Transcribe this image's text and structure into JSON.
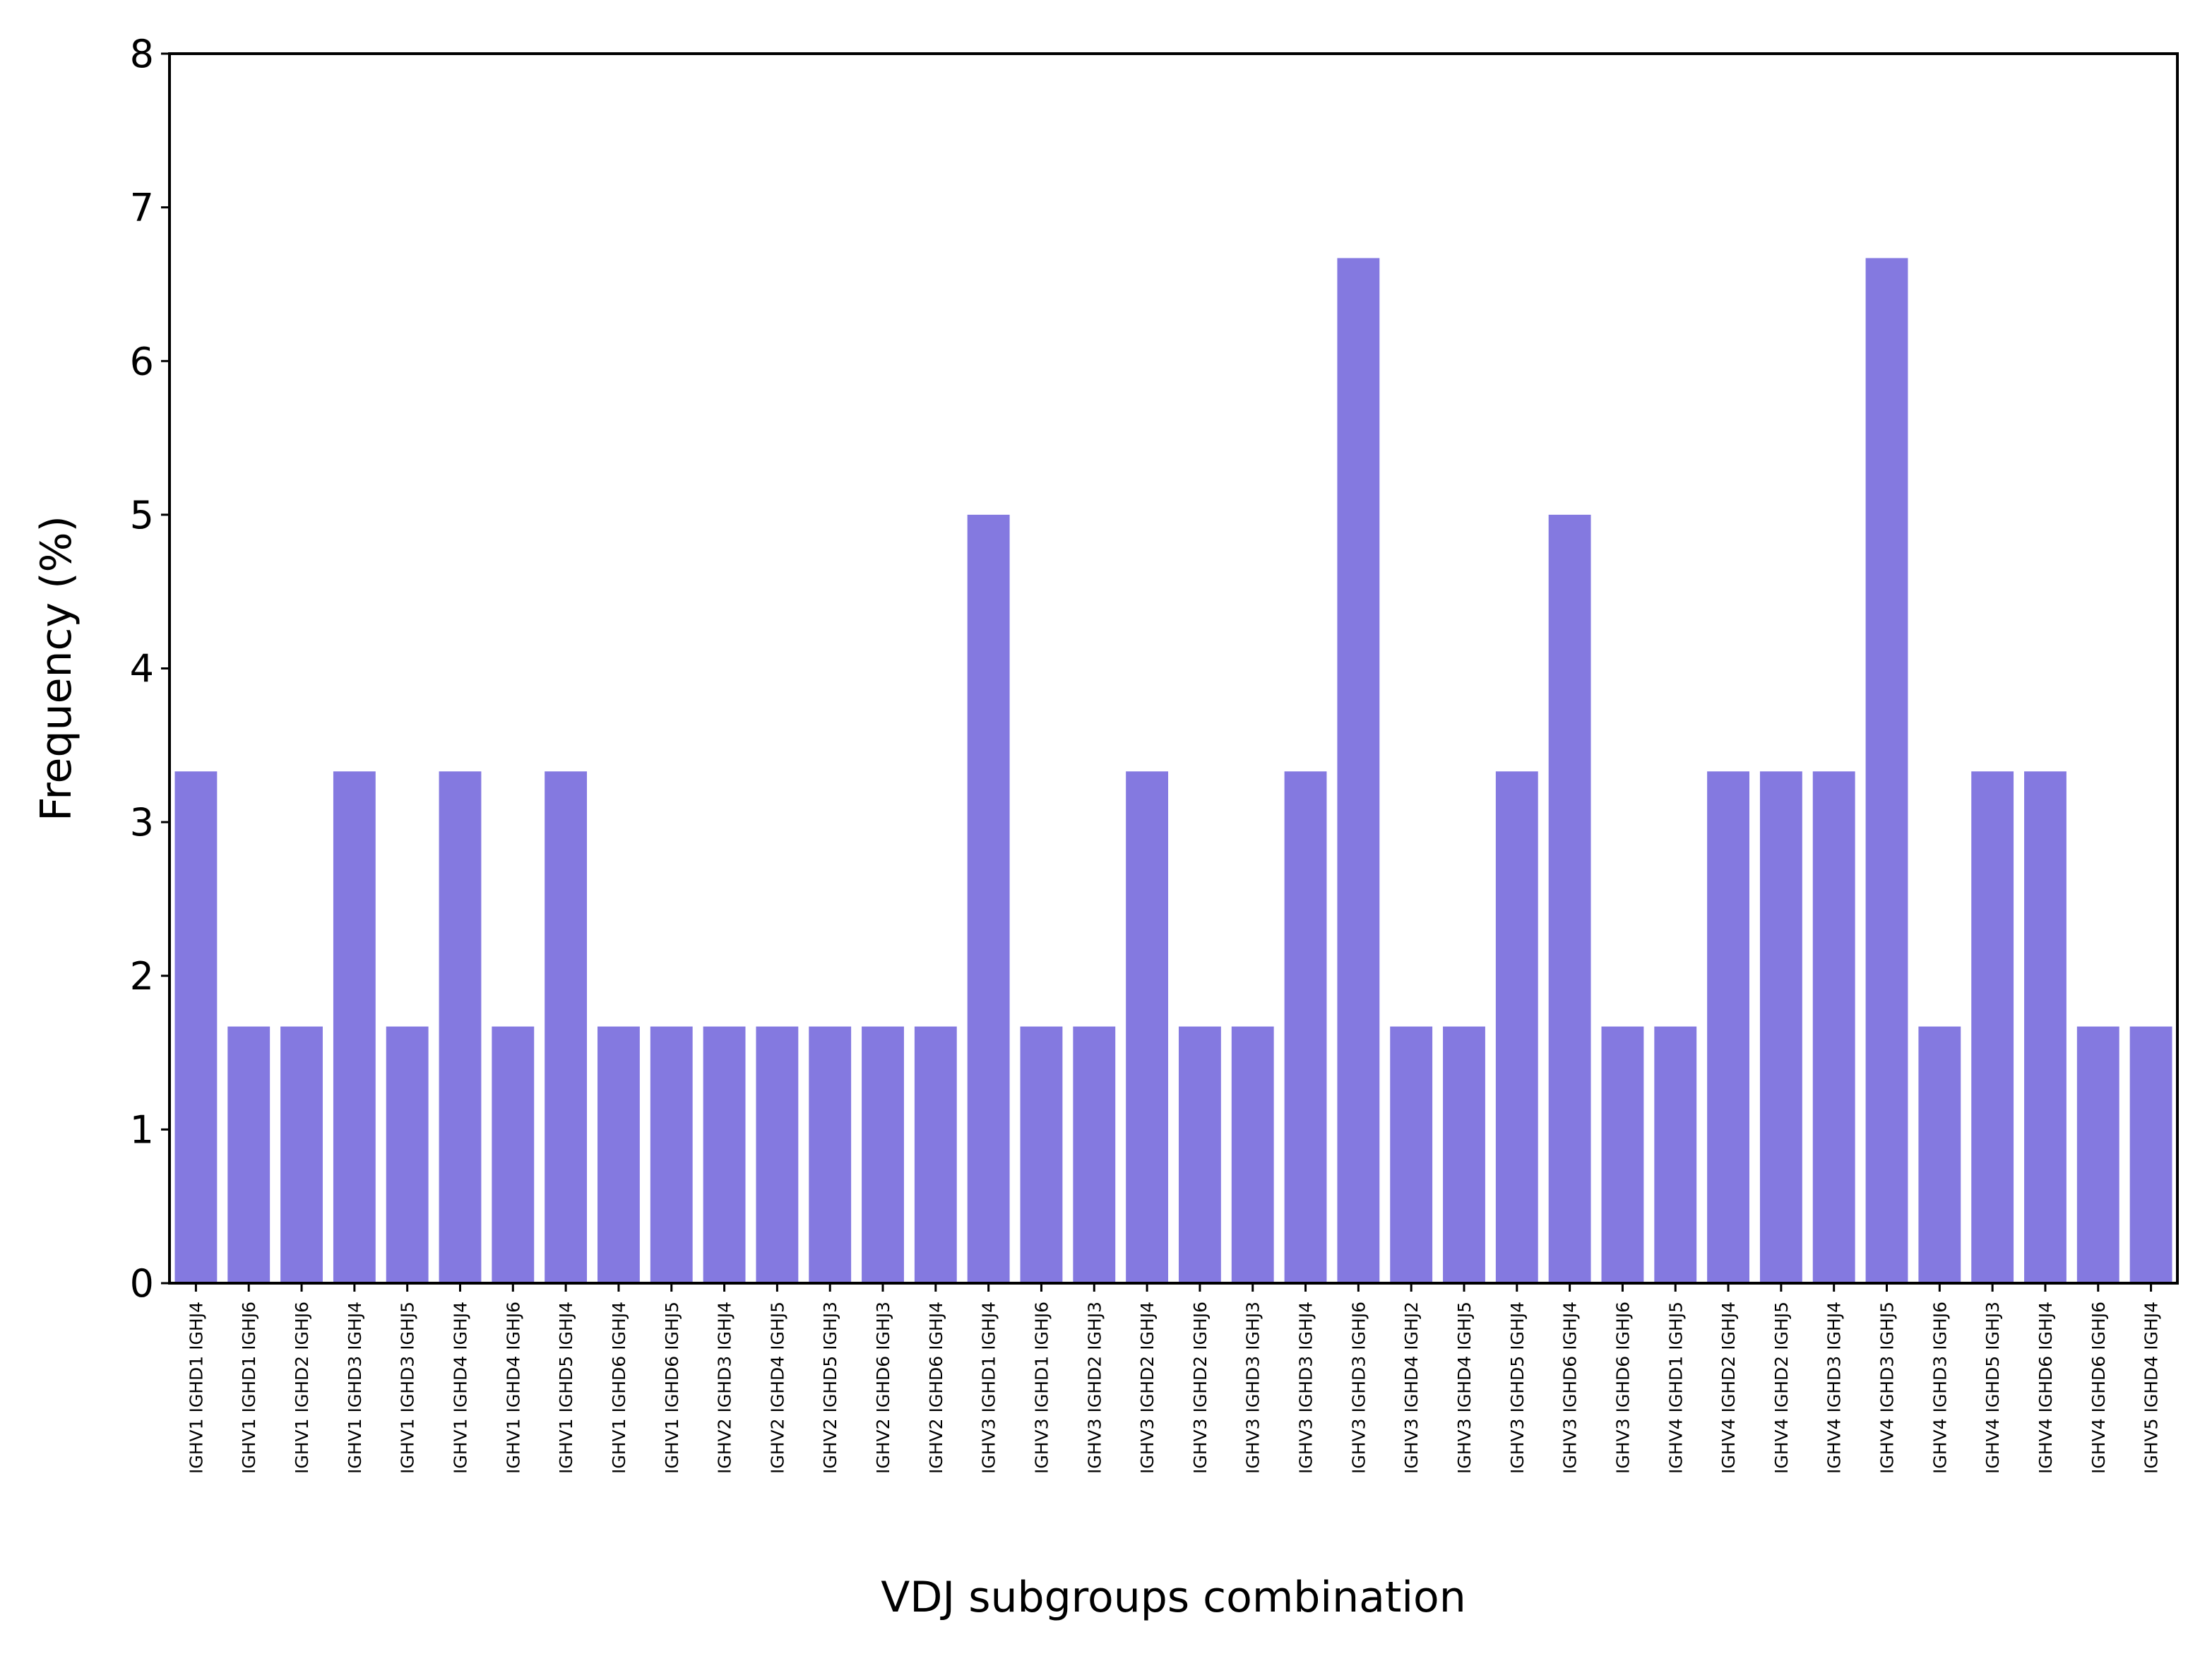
{
  "chart_data": {
    "type": "bar",
    "title": "",
    "xlabel": "VDJ subgroups combination",
    "ylabel": "Frequency (%)",
    "ylim": [
      0,
      8
    ],
    "yticks": [
      "0",
      "1",
      "2",
      "3",
      "4",
      "5",
      "6",
      "7",
      "8"
    ],
    "grid": false,
    "bar_color": "#8479e0",
    "categories": [
      "IGHV1 IGHD1 IGHJ4",
      "IGHV1 IGHD1 IGHJ6",
      "IGHV1 IGHD2 IGHJ6",
      "IGHV1 IGHD3 IGHJ4",
      "IGHV1 IGHD3 IGHJ5",
      "IGHV1 IGHD4 IGHJ4",
      "IGHV1 IGHD4 IGHJ6",
      "IGHV1 IGHD5 IGHJ4",
      "IGHV1 IGHD6 IGHJ4",
      "IGHV1 IGHD6 IGHJ5",
      "IGHV2 IGHD3 IGHJ4",
      "IGHV2 IGHD4 IGHJ5",
      "IGHV2 IGHD5 IGHJ3",
      "IGHV2 IGHD6 IGHJ3",
      "IGHV2 IGHD6 IGHJ4",
      "IGHV3 IGHD1 IGHJ4",
      "IGHV3 IGHD1 IGHJ6",
      "IGHV3 IGHD2 IGHJ3",
      "IGHV3 IGHD2 IGHJ4",
      "IGHV3 IGHD2 IGHJ6",
      "IGHV3 IGHD3 IGHJ3",
      "IGHV3 IGHD3 IGHJ4",
      "IGHV3 IGHD3 IGHJ6",
      "IGHV3 IGHD4 IGHJ2",
      "IGHV3 IGHD4 IGHJ5",
      "IGHV3 IGHD5 IGHJ4",
      "IGHV3 IGHD6 IGHJ4",
      "IGHV3 IGHD6 IGHJ6",
      "IGHV4 IGHD1 IGHJ5",
      "IGHV4 IGHD2 IGHJ4",
      "IGHV4 IGHD2 IGHJ5",
      "IGHV4 IGHD3 IGHJ4",
      "IGHV4 IGHD3 IGHJ5",
      "IGHV4 IGHD3 IGHJ6",
      "IGHV4 IGHD5 IGHJ3",
      "IGHV4 IGHD6 IGHJ4",
      "IGHV4 IGHD6 IGHJ6",
      "IGHV5 IGHD4 IGHJ4"
    ],
    "values": [
      3.33,
      1.67,
      1.67,
      3.33,
      1.67,
      3.33,
      1.67,
      3.33,
      1.67,
      1.67,
      1.67,
      1.67,
      1.67,
      1.67,
      1.67,
      5.0,
      1.67,
      1.67,
      3.33,
      1.67,
      1.67,
      3.33,
      6.67,
      1.67,
      1.67,
      3.33,
      5.0,
      1.67,
      1.67,
      3.33,
      3.33,
      3.33,
      6.67,
      1.67,
      3.33,
      3.33,
      1.67,
      1.67
    ]
  }
}
